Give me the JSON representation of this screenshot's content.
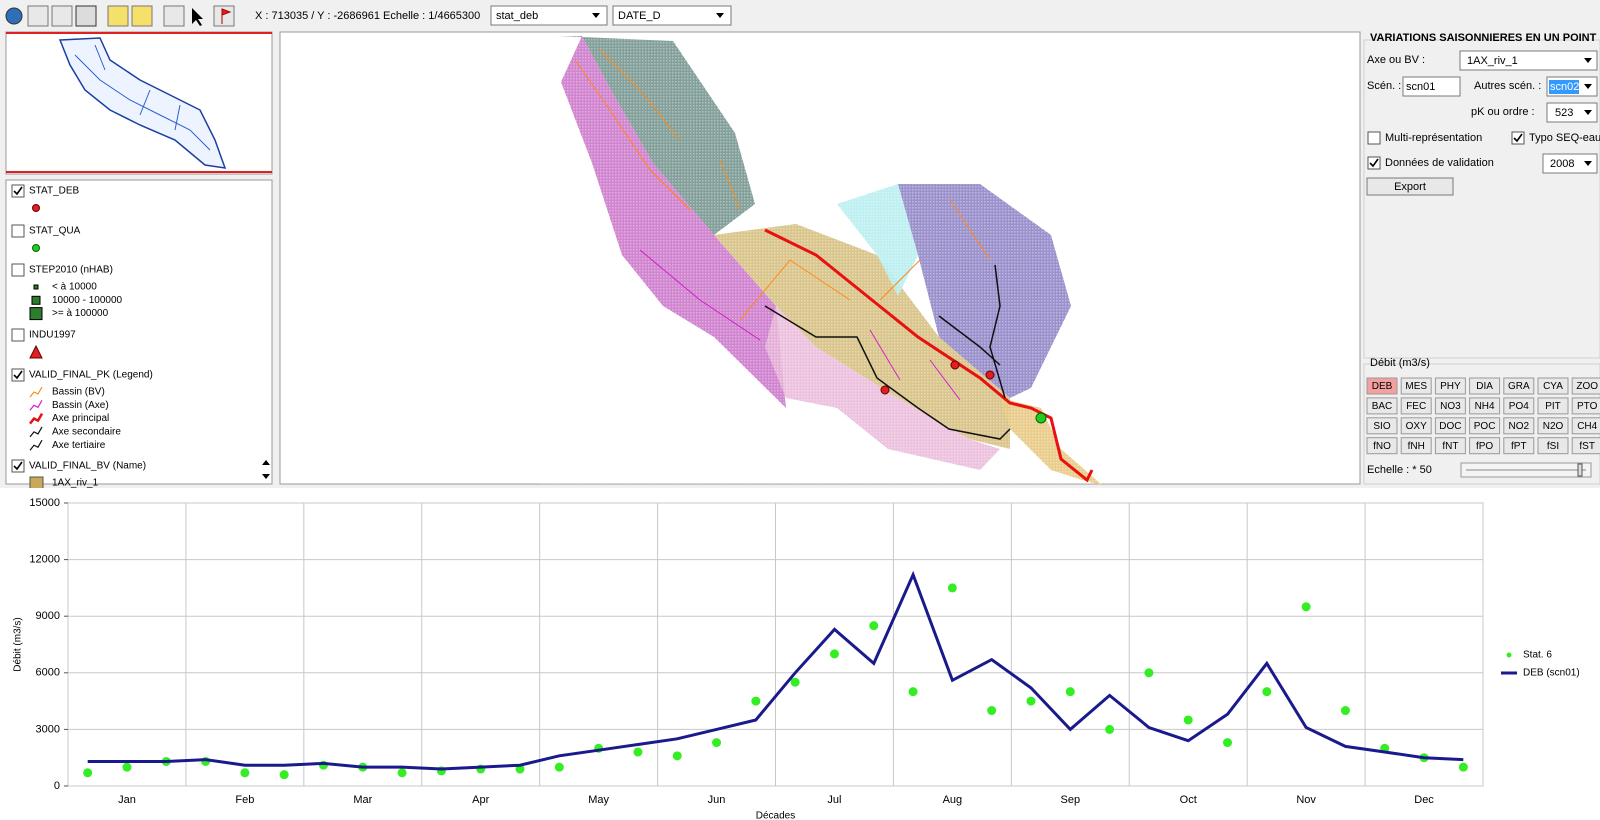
{
  "toolbar": {
    "status": "X : 713035 / Y : -2686961  Echelle : 1/4665300",
    "layer_select": "stat_deb",
    "field_select": "DATE_D"
  },
  "legend": {
    "layers": [
      {
        "name": "STAT_DEB",
        "checked": true
      },
      {
        "name": "STAT_QUA",
        "checked": false
      },
      {
        "name": "STEP2010 (nHAB)",
        "checked": false,
        "items": [
          "< à 10000",
          "10000 - 100000",
          ">= à 100000"
        ]
      },
      {
        "name": "INDU1997",
        "checked": false
      },
      {
        "name": "VALID_FINAL_PK (Legend)",
        "checked": true,
        "items": [
          "Bassin (BV)",
          "Bassin (Axe)",
          "Axe principal",
          "Axe secondaire",
          "Axe tertiaire"
        ]
      },
      {
        "name": "VALID_FINAL_BV (Name)",
        "checked": true,
        "items": [
          "1AX_riv_1"
        ]
      }
    ]
  },
  "panel": {
    "title": "VARIATIONS SAISONNIERES EN UN POINT",
    "axis_label": "Axe ou BV :",
    "axis_value": "1AX_riv_1",
    "scen_label": "Scén. :",
    "scen_value": "scn01",
    "other_label": "Autres scén. :",
    "other_value": "scn02",
    "pk_label": "pK ou ordre :",
    "pk_value": "523",
    "multi": {
      "label": "Multi-représentation",
      "checked": false
    },
    "typo": {
      "label": "Typo SEQ-eau",
      "checked": true
    },
    "validation": {
      "label": "Données de validation",
      "checked": true
    },
    "year": "2008",
    "export": "Export"
  },
  "debit": {
    "title": "Débit (m3/s)",
    "selected": 0,
    "codes": [
      "DEB",
      "MES",
      "PHY",
      "DIA",
      "GRA",
      "CYA",
      "ZOO",
      "BAC",
      "FEC",
      "NO3",
      "NH4",
      "PO4",
      "PIT",
      "PTO",
      "SIO",
      "OXY",
      "DOC",
      "POC",
      "NO2",
      "N2O",
      "CH4",
      "fNO",
      "fNH",
      "fNT",
      "fPO",
      "fPT",
      "fSI",
      "fST"
    ],
    "scale_label": "Echelle : * 50"
  },
  "chart_data": {
    "type": "line",
    "xlabel": "Décades",
    "ylabel": "Débit (m3/s)",
    "categories": [
      null,
      "Jan",
      null,
      null,
      "Feb",
      null,
      null,
      "Mar",
      null,
      null,
      "Apr",
      null,
      null,
      "May",
      null,
      null,
      "Jun",
      null,
      null,
      "Jul",
      null,
      null,
      "Aug",
      null,
      null,
      "Sep",
      null,
      null,
      "Oct",
      null,
      null,
      "Nov",
      null,
      null,
      "Dec",
      null
    ],
    "ylim": [
      0,
      15000
    ],
    "yticks": [
      0,
      3000,
      6000,
      9000,
      12000,
      15000
    ],
    "grid": true,
    "legend": "right",
    "series": [
      {
        "name": "Stat. 6",
        "type": "scatter",
        "color": "#33ee22",
        "values": [
          700,
          1000,
          1300,
          1300,
          700,
          600,
          1100,
          1000,
          700,
          800,
          900,
          900,
          1000,
          2000,
          1800,
          1600,
          2300,
          4500,
          5500,
          7000,
          8500,
          5000,
          10500,
          4000,
          4500,
          5000,
          3000,
          6000,
          3500,
          2300,
          5000,
          9500,
          4000,
          2000,
          1500,
          1000
        ]
      },
      {
        "name": "DEB (scn01)",
        "type": "line",
        "color": "#1a1a8c",
        "values": [
          1300,
          1300,
          1300,
          1400,
          1100,
          1100,
          1200,
          1000,
          1000,
          900,
          1000,
          1100,
          1600,
          1900,
          2200,
          2500,
          3000,
          3500,
          6000,
          8300,
          6500,
          11200,
          5600,
          6700,
          5200,
          3000,
          4800,
          3100,
          2400,
          3800,
          6500,
          3100,
          2100,
          1800,
          1500,
          1400
        ]
      }
    ]
  }
}
